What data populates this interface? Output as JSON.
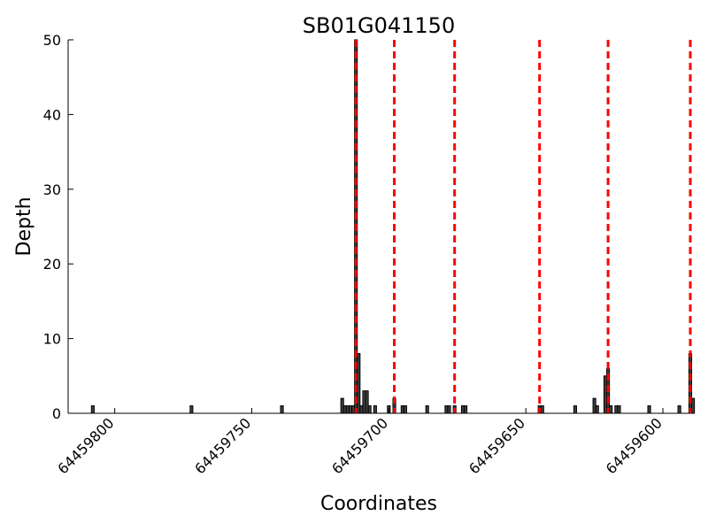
{
  "chart_data": {
    "type": "bar",
    "title": "SB01G041150",
    "xlabel": "Coordinates",
    "ylabel": "Depth",
    "x_reversed": true,
    "xlim": [
      64459817,
      64459590
    ],
    "ylim": [
      0,
      50
    ],
    "yticks": [
      0,
      10,
      20,
      30,
      40,
      50
    ],
    "xticks": [
      64459800,
      64459750,
      64459700,
      64459650,
      64459600
    ],
    "grid": false,
    "bar_color": "#404040",
    "bar_edge_color": "#000000",
    "marker_color": "#ff0000",
    "bars": [
      {
        "x": 64459808,
        "y": 1
      },
      {
        "x": 64459772,
        "y": 1
      },
      {
        "x": 64459739,
        "y": 1
      },
      {
        "x": 64459717,
        "y": 2
      },
      {
        "x": 64459716,
        "y": 1
      },
      {
        "x": 64459715,
        "y": 1
      },
      {
        "x": 64459714,
        "y": 1
      },
      {
        "x": 64459713,
        "y": 1
      },
      {
        "x": 64459712,
        "y": 50
      },
      {
        "x": 64459711,
        "y": 8
      },
      {
        "x": 64459710,
        "y": 1
      },
      {
        "x": 64459709,
        "y": 3
      },
      {
        "x": 64459708,
        "y": 3
      },
      {
        "x": 64459707,
        "y": 1
      },
      {
        "x": 64459705,
        "y": 1
      },
      {
        "x": 64459700,
        "y": 1
      },
      {
        "x": 64459698,
        "y": 2
      },
      {
        "x": 64459695,
        "y": 1
      },
      {
        "x": 64459694,
        "y": 1
      },
      {
        "x": 64459686,
        "y": 1
      },
      {
        "x": 64459679,
        "y": 1
      },
      {
        "x": 64459678,
        "y": 1
      },
      {
        "x": 64459676,
        "y": 1
      },
      {
        "x": 64459673,
        "y": 1
      },
      {
        "x": 64459672,
        "y": 1
      },
      {
        "x": 64459645,
        "y": 1
      },
      {
        "x": 64459644,
        "y": 1
      },
      {
        "x": 64459632,
        "y": 1
      },
      {
        "x": 64459625,
        "y": 2
      },
      {
        "x": 64459624,
        "y": 1
      },
      {
        "x": 64459621,
        "y": 5
      },
      {
        "x": 64459620,
        "y": 6
      },
      {
        "x": 64459619,
        "y": 1
      },
      {
        "x": 64459617,
        "y": 1
      },
      {
        "x": 64459616,
        "y": 1
      },
      {
        "x": 64459605,
        "y": 1
      },
      {
        "x": 64459594,
        "y": 1
      },
      {
        "x": 64459590,
        "y": 8
      },
      {
        "x": 64459589,
        "y": 2
      }
    ],
    "markers": [
      64459712,
      64459698,
      64459676,
      64459645,
      64459620,
      64459590
    ]
  }
}
